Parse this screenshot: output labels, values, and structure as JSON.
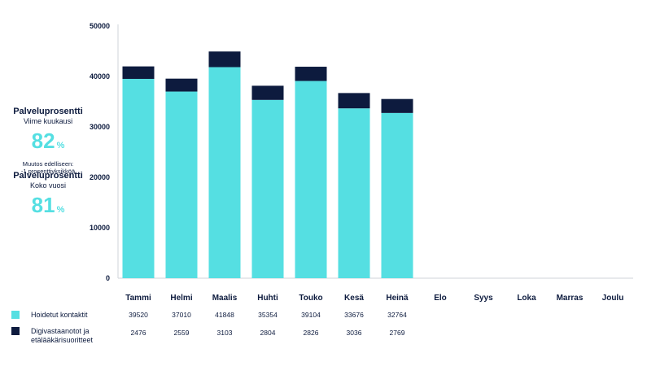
{
  "stats": {
    "last_month_title": "Palveluprosentti",
    "last_month_sub": "Viime kuukausi",
    "last_month_value": "82",
    "last_month_unit": "%",
    "change_note_1": "Muutos edelliseen:",
    "change_note_2": "-1 prosenttiyksikköä",
    "year_title": "Palveluprosentti",
    "year_sub": "Koko vuosi",
    "year_value": "81",
    "year_unit": "%"
  },
  "colors": {
    "primary": "#55dfe2",
    "secondary": "#0d1b3e"
  },
  "chart_data": {
    "type": "bar",
    "stacked": true,
    "categories": [
      "Tammi",
      "Helmi",
      "Maalis",
      "Huhti",
      "Touko",
      "Kesä",
      "Heinä",
      "Elo",
      "Syys",
      "Loka",
      "Marras",
      "Joulu"
    ],
    "series": [
      {
        "name": "Hoidetut kontaktit",
        "color": "#55dfe2",
        "values": [
          39520,
          37010,
          41848,
          35354,
          39104,
          33676,
          32764,
          null,
          null,
          null,
          null,
          null
        ]
      },
      {
        "name": "Digivastaanotot ja etälääkärisuoritteet",
        "color": "#0d1b3e",
        "values": [
          2476,
          2559,
          3103,
          2804,
          2826,
          3036,
          2769,
          null,
          null,
          null,
          null,
          null
        ]
      }
    ],
    "y_ticks": [
      0,
      10000,
      20000,
      30000,
      40000,
      50000
    ],
    "ylim": [
      0,
      50000
    ],
    "grid": false,
    "legend_position": "bottom-left"
  }
}
